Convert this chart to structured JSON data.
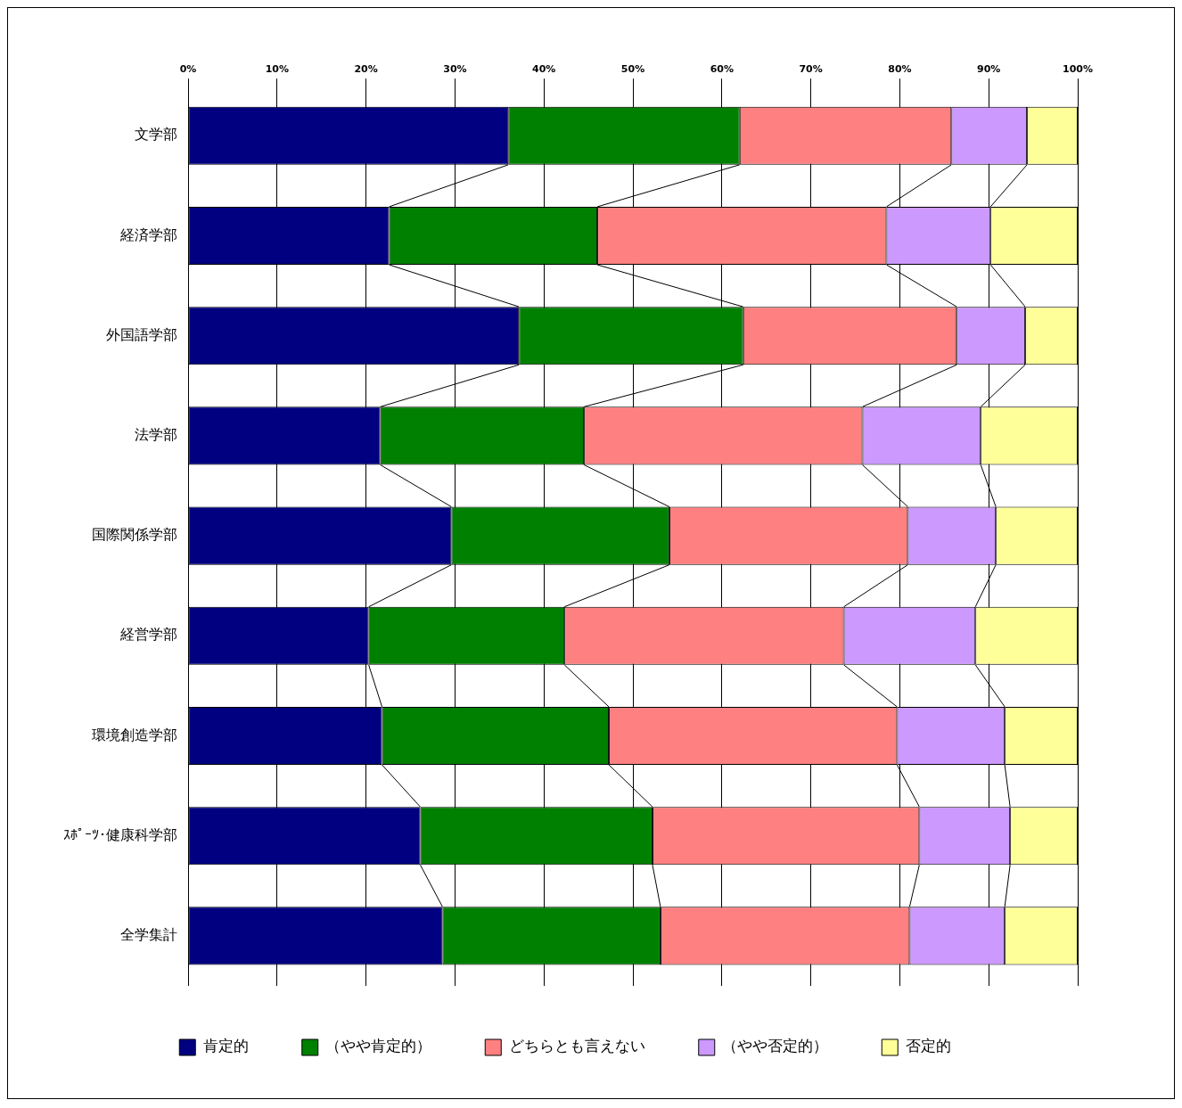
{
  "chart_data": {
    "type": "bar",
    "orientation": "horizontal",
    "stacked": true,
    "categories": [
      "文学部",
      "経済学部",
      "外国語学部",
      "法学部",
      "国際関係学部",
      "経営学部",
      "環境創造学部",
      "ｽﾎﾟｰﾂ･健康科学部",
      "全学集計"
    ],
    "series": [
      {
        "name": "肯定的",
        "color": "#000080",
        "values": [
          36.0,
          22.6,
          37.2,
          21.6,
          29.6,
          20.3,
          21.8,
          26.1,
          28.6
        ]
      },
      {
        "name": "（やや肯定的）",
        "color": "#008000",
        "values": [
          26.0,
          23.4,
          25.2,
          22.9,
          24.5,
          22.0,
          25.5,
          26.1,
          24.5
        ]
      },
      {
        "name": "どちらとも言えない",
        "color": "#ff8080",
        "values": [
          23.8,
          32.5,
          24.0,
          31.3,
          26.8,
          31.4,
          32.4,
          30.0,
          28.0
        ]
      },
      {
        "name": "（やや否定的）",
        "color": "#cc99ff",
        "values": [
          8.5,
          11.7,
          7.7,
          13.3,
          9.9,
          14.8,
          12.1,
          10.2,
          10.7
        ]
      },
      {
        "name": "否定的",
        "color": "#ffff99",
        "values": [
          5.7,
          9.8,
          5.9,
          10.9,
          9.2,
          11.5,
          8.2,
          7.6,
          8.2
        ]
      }
    ],
    "xlim": [
      0,
      100
    ],
    "xticks": [
      {
        "value": 0,
        "label": "0%"
      },
      {
        "value": 10,
        "label": "10%"
      },
      {
        "value": 20,
        "label": "20%"
      },
      {
        "value": 30,
        "label": "30%"
      },
      {
        "value": 40,
        "label": "40%"
      },
      {
        "value": 50,
        "label": "50%"
      },
      {
        "value": 60,
        "label": "60%"
      },
      {
        "value": 70,
        "label": "70%"
      },
      {
        "value": 80,
        "label": "80%"
      },
      {
        "value": 90,
        "label": "90%"
      },
      {
        "value": 100,
        "label": "100%"
      }
    ],
    "grid": "x",
    "legend": "bottom"
  }
}
